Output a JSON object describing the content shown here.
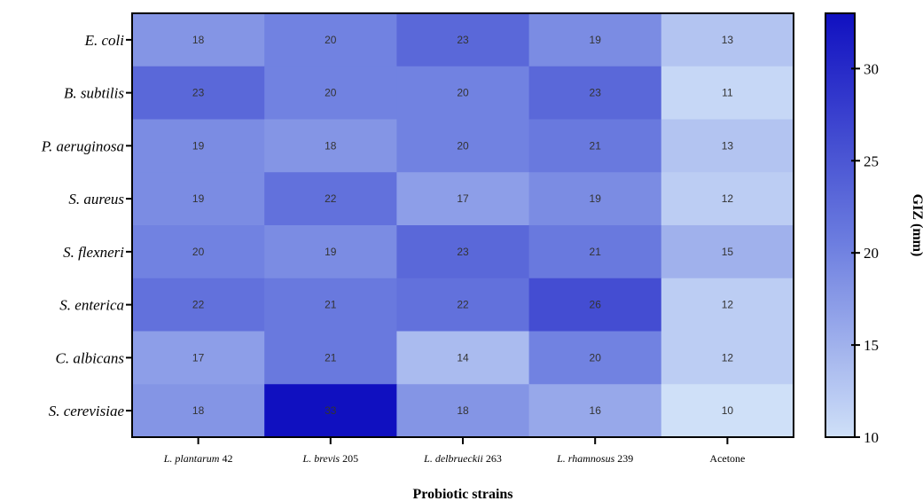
{
  "chart_data": {
    "type": "heatmap",
    "xlabel": "Probiotic strains",
    "colorbar_label": "GIZ (mm)",
    "rows": [
      "E. coli",
      "B. subtilis",
      "P. aeruginosa",
      "S. aureus",
      "S. flexneri",
      "S. enterica",
      "C. albicans",
      "S. cerevisiae"
    ],
    "columns": [
      {
        "italic": "L. plantarum",
        "plain": " 42"
      },
      {
        "italic": "L. brevis",
        "plain": " 205"
      },
      {
        "italic": "L. delbrueckii",
        "plain": " 263"
      },
      {
        "italic": "L. rhamnosus",
        "plain": " 239"
      },
      {
        "italic": "",
        "plain": "Acetone"
      }
    ],
    "values": [
      [
        18,
        20,
        23,
        19,
        13
      ],
      [
        23,
        20,
        20,
        23,
        11
      ],
      [
        19,
        18,
        20,
        21,
        13
      ],
      [
        19,
        22,
        17,
        19,
        12
      ],
      [
        20,
        19,
        23,
        21,
        15
      ],
      [
        22,
        21,
        22,
        26,
        12
      ],
      [
        17,
        21,
        14,
        20,
        12
      ],
      [
        18,
        33,
        18,
        16,
        10
      ]
    ],
    "color_range": [
      10,
      33
    ],
    "colorbar_ticks": [
      10,
      15,
      20,
      25,
      30
    ],
    "colors": {
      "low": "#cfe0f8",
      "mid": "#6e7fe0",
      "high": "#1010c0"
    }
  }
}
